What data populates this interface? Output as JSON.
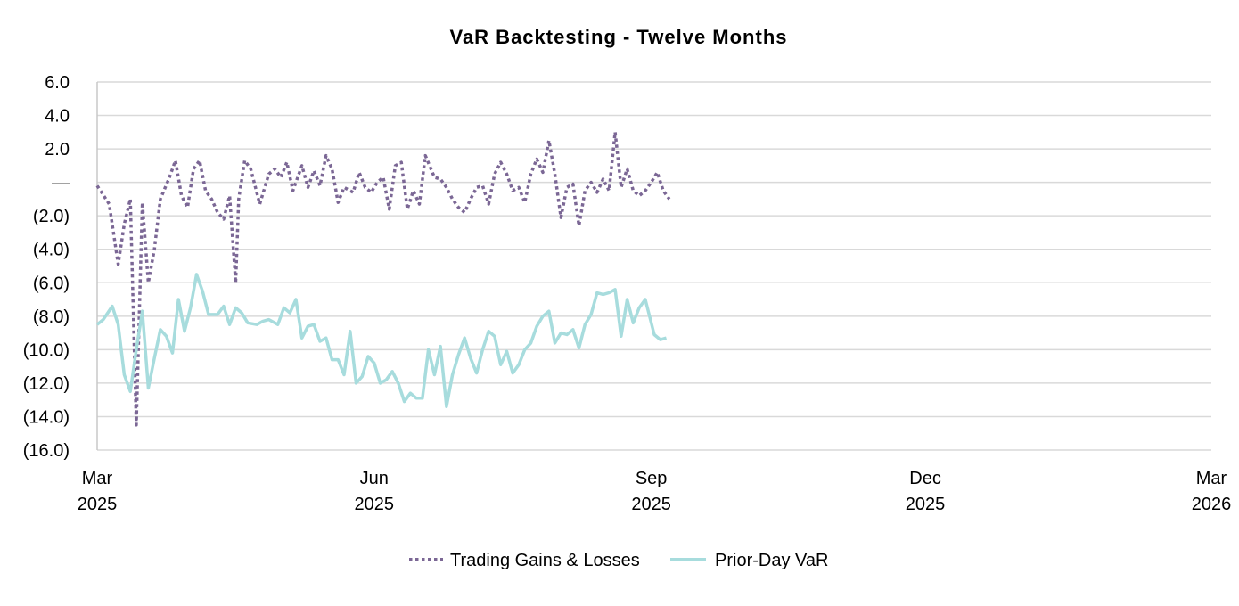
{
  "chart_data": {
    "type": "line",
    "title": "VaR Backtesting - Twelve Months",
    "xlabel": "",
    "ylabel": "",
    "ylim": [
      -16,
      6
    ],
    "y_ticks": [
      {
        "value": 6,
        "label": "6.0"
      },
      {
        "value": 4,
        "label": "4.0"
      },
      {
        "value": 2,
        "label": "2.0"
      },
      {
        "value": 0,
        "label": "—"
      },
      {
        "value": -2,
        "label": "(2.0)"
      },
      {
        "value": -4,
        "label": "(4.0)"
      },
      {
        "value": -6,
        "label": "(6.0)"
      },
      {
        "value": -8,
        "label": "(8.0)"
      },
      {
        "value": -10,
        "label": "(10.0)"
      },
      {
        "value": -12,
        "label": "(12.0)"
      },
      {
        "value": -14,
        "label": "(14.0)"
      },
      {
        "value": -16,
        "label": "(16.0)"
      }
    ],
    "xlim": [
      "2025-03-01",
      "2026-03-06"
    ],
    "x_ticks": [
      {
        "date": "2025-03-01",
        "label": "Mar",
        "label2": "2025"
      },
      {
        "date": "2025-06-01",
        "label": "Jun",
        "label2": "2025"
      },
      {
        "date": "2025-09-01",
        "label": "Sep",
        "label2": "2025"
      },
      {
        "date": "2025-12-01",
        "label": "Dec",
        "label2": "2025"
      },
      {
        "date": "2026-03-06",
        "label": "Mar",
        "label2": "2026"
      }
    ],
    "grid": "horizontal",
    "legend": "bottom",
    "series": [
      {
        "name": "Trading Gains & Losses",
        "color": "#7b6795",
        "style": "dotted",
        "points": [
          [
            "2025-03-01",
            -0.2
          ],
          [
            "2025-03-05",
            -1.3
          ],
          [
            "2025-03-08",
            -4.9
          ],
          [
            "2025-03-10",
            -2.5
          ],
          [
            "2025-03-12",
            -1.0
          ],
          [
            "2025-03-14",
            -14.5
          ],
          [
            "2025-03-16",
            -1.2
          ],
          [
            "2025-03-18",
            -6.0
          ],
          [
            "2025-03-20",
            -4.0
          ],
          [
            "2025-03-22",
            -1.0
          ],
          [
            "2025-03-25",
            0.3
          ],
          [
            "2025-03-27",
            1.3
          ],
          [
            "2025-03-29",
            -0.8
          ],
          [
            "2025-03-31",
            -1.5
          ],
          [
            "2025-04-02",
            0.8
          ],
          [
            "2025-04-04",
            1.3
          ],
          [
            "2025-04-06",
            -0.5
          ],
          [
            "2025-04-08",
            -1.0
          ],
          [
            "2025-04-10",
            -1.8
          ],
          [
            "2025-04-12",
            -2.2
          ],
          [
            "2025-04-14",
            -0.8
          ],
          [
            "2025-04-16",
            -6.0
          ],
          [
            "2025-04-17",
            -1.0
          ],
          [
            "2025-04-19",
            1.3
          ],
          [
            "2025-04-21",
            0.8
          ],
          [
            "2025-04-24",
            -1.3
          ],
          [
            "2025-04-27",
            0.5
          ],
          [
            "2025-04-29",
            0.8
          ],
          [
            "2025-05-01",
            0.3
          ],
          [
            "2025-05-03",
            1.2
          ],
          [
            "2025-05-05",
            -0.5
          ],
          [
            "2025-05-08",
            1.0
          ],
          [
            "2025-05-10",
            -0.3
          ],
          [
            "2025-05-12",
            0.7
          ],
          [
            "2025-05-14",
            -0.2
          ],
          [
            "2025-05-16",
            1.6
          ],
          [
            "2025-05-18",
            0.8
          ],
          [
            "2025-05-20",
            -1.2
          ],
          [
            "2025-05-22",
            -0.3
          ],
          [
            "2025-05-25",
            -0.6
          ],
          [
            "2025-05-27",
            0.6
          ],
          [
            "2025-05-29",
            -0.3
          ],
          [
            "2025-05-31",
            -0.6
          ],
          [
            "2025-06-02",
            0.0
          ],
          [
            "2025-06-04",
            0.3
          ],
          [
            "2025-06-06",
            -1.6
          ],
          [
            "2025-06-08",
            1.0
          ],
          [
            "2025-06-10",
            1.2
          ],
          [
            "2025-06-12",
            -1.6
          ],
          [
            "2025-06-14",
            -0.5
          ],
          [
            "2025-06-16",
            -1.3
          ],
          [
            "2025-06-18",
            1.6
          ],
          [
            "2025-06-21",
            0.3
          ],
          [
            "2025-06-23",
            0.2
          ],
          [
            "2025-06-25",
            -0.3
          ],
          [
            "2025-06-27",
            -1.0
          ],
          [
            "2025-06-29",
            -1.5
          ],
          [
            "2025-07-01",
            -1.8
          ],
          [
            "2025-07-03",
            -1.0
          ],
          [
            "2025-07-05",
            -0.3
          ],
          [
            "2025-07-07",
            -0.2
          ],
          [
            "2025-07-09",
            -1.3
          ],
          [
            "2025-07-11",
            0.5
          ],
          [
            "2025-07-13",
            1.2
          ],
          [
            "2025-07-15",
            0.5
          ],
          [
            "2025-07-17",
            -0.5
          ],
          [
            "2025-07-19",
            -0.3
          ],
          [
            "2025-07-21",
            -1.2
          ],
          [
            "2025-07-23",
            0.5
          ],
          [
            "2025-07-25",
            1.4
          ],
          [
            "2025-07-27",
            0.6
          ],
          [
            "2025-07-29",
            2.5
          ],
          [
            "2025-07-31",
            0.5
          ],
          [
            "2025-08-02",
            -2.1
          ],
          [
            "2025-08-04",
            -0.3
          ],
          [
            "2025-08-06",
            -0.1
          ],
          [
            "2025-08-08",
            -2.6
          ],
          [
            "2025-08-10",
            -0.5
          ],
          [
            "2025-08-12",
            0.0
          ],
          [
            "2025-08-14",
            -0.6
          ],
          [
            "2025-08-16",
            0.2
          ],
          [
            "2025-08-18",
            -0.5
          ],
          [
            "2025-08-20",
            3.0
          ],
          [
            "2025-08-22",
            -0.3
          ],
          [
            "2025-08-24",
            0.8
          ],
          [
            "2025-08-26",
            -0.5
          ],
          [
            "2025-08-28",
            -0.8
          ],
          [
            "2025-08-30",
            -0.5
          ],
          [
            "2025-09-01",
            0.0
          ],
          [
            "2025-09-03",
            0.6
          ],
          [
            "2025-09-05",
            -0.5
          ],
          [
            "2025-09-07",
            -1.0
          ]
        ]
      },
      {
        "name": "Prior-Day VaR",
        "color": "#a7dcdd",
        "style": "solid",
        "points": [
          [
            "2025-03-01",
            -8.5
          ],
          [
            "2025-03-03",
            -8.2
          ],
          [
            "2025-03-06",
            -7.4
          ],
          [
            "2025-03-08",
            -8.5
          ],
          [
            "2025-03-10",
            -11.5
          ],
          [
            "2025-03-12",
            -12.5
          ],
          [
            "2025-03-14",
            -10.0
          ],
          [
            "2025-03-16",
            -7.7
          ],
          [
            "2025-03-18",
            -12.3
          ],
          [
            "2025-03-20",
            -10.5
          ],
          [
            "2025-03-22",
            -8.8
          ],
          [
            "2025-03-24",
            -9.2
          ],
          [
            "2025-03-26",
            -10.2
          ],
          [
            "2025-03-28",
            -7.0
          ],
          [
            "2025-03-30",
            -8.9
          ],
          [
            "2025-04-01",
            -7.5
          ],
          [
            "2025-04-03",
            -5.5
          ],
          [
            "2025-04-05",
            -6.5
          ],
          [
            "2025-04-07",
            -7.9
          ],
          [
            "2025-04-10",
            -7.9
          ],
          [
            "2025-04-12",
            -7.4
          ],
          [
            "2025-04-14",
            -8.5
          ],
          [
            "2025-04-16",
            -7.5
          ],
          [
            "2025-04-18",
            -7.8
          ],
          [
            "2025-04-20",
            -8.4
          ],
          [
            "2025-04-23",
            -8.5
          ],
          [
            "2025-04-25",
            -8.3
          ],
          [
            "2025-04-27",
            -8.2
          ],
          [
            "2025-04-30",
            -8.5
          ],
          [
            "2025-05-02",
            -7.5
          ],
          [
            "2025-05-04",
            -7.8
          ],
          [
            "2025-05-06",
            -7.0
          ],
          [
            "2025-05-08",
            -9.3
          ],
          [
            "2025-05-10",
            -8.6
          ],
          [
            "2025-05-12",
            -8.5
          ],
          [
            "2025-05-14",
            -9.5
          ],
          [
            "2025-05-16",
            -9.3
          ],
          [
            "2025-05-18",
            -10.6
          ],
          [
            "2025-05-20",
            -10.6
          ],
          [
            "2025-05-22",
            -11.5
          ],
          [
            "2025-05-24",
            -8.9
          ],
          [
            "2025-05-26",
            -12.0
          ],
          [
            "2025-05-28",
            -11.6
          ],
          [
            "2025-05-30",
            -10.4
          ],
          [
            "2025-06-01",
            -10.8
          ],
          [
            "2025-06-03",
            -12.0
          ],
          [
            "2025-06-05",
            -11.8
          ],
          [
            "2025-06-07",
            -11.3
          ],
          [
            "2025-06-09",
            -12.0
          ],
          [
            "2025-06-11",
            -13.1
          ],
          [
            "2025-06-13",
            -12.6
          ],
          [
            "2025-06-15",
            -12.9
          ],
          [
            "2025-06-17",
            -12.9
          ],
          [
            "2025-06-19",
            -10.0
          ],
          [
            "2025-06-21",
            -11.5
          ],
          [
            "2025-06-23",
            -9.8
          ],
          [
            "2025-06-25",
            -13.4
          ],
          [
            "2025-06-27",
            -11.5
          ],
          [
            "2025-06-29",
            -10.3
          ],
          [
            "2025-07-01",
            -9.3
          ],
          [
            "2025-07-03",
            -10.5
          ],
          [
            "2025-07-05",
            -11.4
          ],
          [
            "2025-07-07",
            -10.0
          ],
          [
            "2025-07-09",
            -8.9
          ],
          [
            "2025-07-11",
            -9.2
          ],
          [
            "2025-07-13",
            -10.9
          ],
          [
            "2025-07-15",
            -10.1
          ],
          [
            "2025-07-17",
            -11.4
          ],
          [
            "2025-07-19",
            -10.9
          ],
          [
            "2025-07-21",
            -10.0
          ],
          [
            "2025-07-23",
            -9.6
          ],
          [
            "2025-07-25",
            -8.6
          ],
          [
            "2025-07-27",
            -8.0
          ],
          [
            "2025-07-29",
            -7.7
          ],
          [
            "2025-07-31",
            -9.6
          ],
          [
            "2025-08-02",
            -9.0
          ],
          [
            "2025-08-04",
            -9.1
          ],
          [
            "2025-08-06",
            -8.8
          ],
          [
            "2025-08-08",
            -9.9
          ],
          [
            "2025-08-10",
            -8.5
          ],
          [
            "2025-08-12",
            -7.9
          ],
          [
            "2025-08-14",
            -6.6
          ],
          [
            "2025-08-16",
            -6.7
          ],
          [
            "2025-08-18",
            -6.6
          ],
          [
            "2025-08-20",
            -6.4
          ],
          [
            "2025-08-22",
            -9.2
          ],
          [
            "2025-08-24",
            -7.0
          ],
          [
            "2025-08-26",
            -8.4
          ],
          [
            "2025-08-28",
            -7.5
          ],
          [
            "2025-08-30",
            -7.0
          ],
          [
            "2025-09-02",
            -9.1
          ],
          [
            "2025-09-04",
            -9.4
          ],
          [
            "2025-09-06",
            -9.3
          ]
        ]
      }
    ]
  }
}
